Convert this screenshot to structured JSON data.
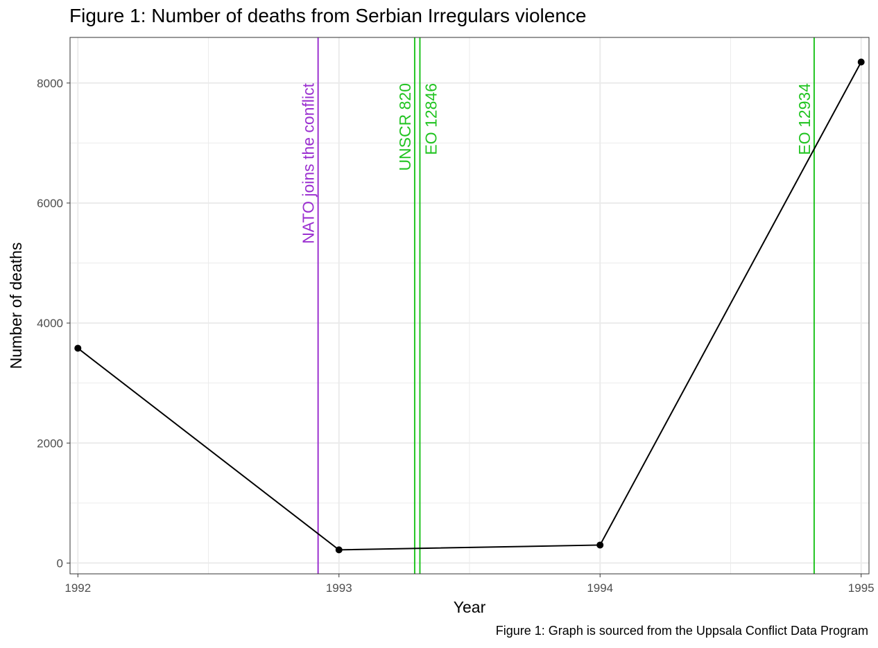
{
  "title": "Figure 1: Number of deaths from Serbian Irregulars violence",
  "caption": "Figure 1: Graph is sourced from the Uppsala Conflict Data Program",
  "colors": {
    "series": "#000000",
    "nato": "#9b30d0",
    "sanction": "#22c422",
    "grid": "#ebebeb",
    "panel_border": "#333333"
  },
  "chart_data": {
    "type": "line",
    "title": "Figure 1: Number of deaths from Serbian Irregulars violence",
    "xlabel": "Year",
    "ylabel": "Number of deaths",
    "x": [
      1992,
      1993,
      1994,
      1995
    ],
    "series": [
      {
        "values": [
          3580,
          220,
          300,
          8350
        ]
      }
    ],
    "xlim": [
      1991.97,
      1995.03
    ],
    "ylim": [
      -180,
      8760
    ],
    "xticks": [
      1992,
      1993,
      1994,
      1995
    ],
    "yticks": [
      0,
      2000,
      4000,
      6000,
      8000
    ],
    "grid": true,
    "vertical_lines": [
      {
        "x": 1992.92,
        "label": "NATO joins the conflict",
        "color": "#9b30d0"
      },
      {
        "x": 1993.29,
        "label": "UNSCR 820",
        "color": "#22c422"
      },
      {
        "x": 1993.31,
        "label": "EO 12846",
        "color": "#22c422"
      },
      {
        "x": 1994.82,
        "label": "EO 12934",
        "color": "#22c422"
      }
    ]
  }
}
